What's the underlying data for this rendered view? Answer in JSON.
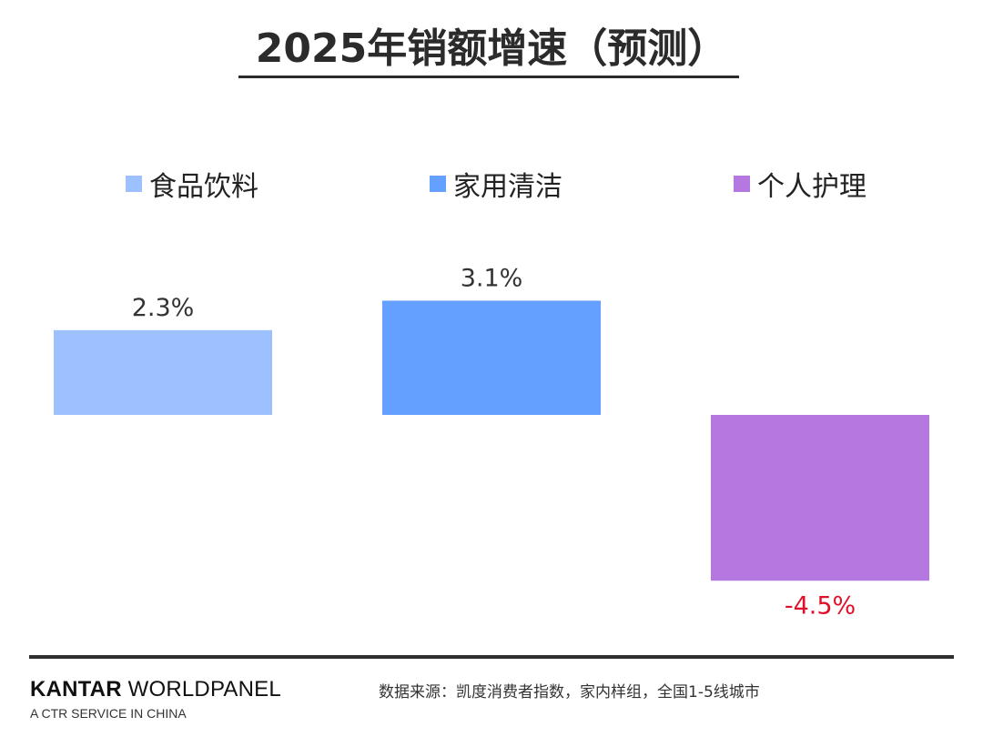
{
  "title": "2025年销额增速（预测）",
  "colors": {
    "food": "#9DC0FF",
    "cleaning": "#64A0FF",
    "personal": "#B478E0",
    "negative_label": "#E0102A",
    "positive_label": "#333333"
  },
  "chart_data": {
    "type": "bar",
    "title": "2025年销额增速（预测）",
    "categories": [
      "食品饮料",
      "家用清洁",
      "个人护理"
    ],
    "values": [
      2.3,
      3.1,
      -4.5
    ],
    "labels": [
      "2.3%",
      "3.1%",
      "-4.5%"
    ],
    "unit": "%",
    "legend": [
      "食品饮料",
      "家用清洁",
      "个人护理"
    ],
    "legend_position": "top",
    "xlabel": "",
    "ylabel": "",
    "grid": false
  },
  "footer": {
    "brand_bold": "KANTAR",
    "brand_rest": " WORLDPANEL",
    "brand_sub": "A CTR SERVICE IN CHINA",
    "source": "数据来源：凯度消费者指数，家内样组，全国1-5线城市"
  }
}
